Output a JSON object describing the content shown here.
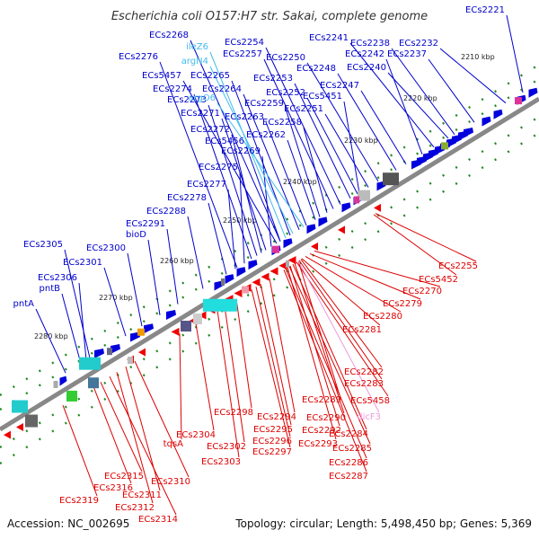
{
  "title": "Escherichia coli O157:H7 str. Sakai, complete genome",
  "accession": "Accession: NC_002695",
  "topology": "Topology: circular; Length: 5,498,450 bp; Genes: 5,369",
  "colors": {
    "forward_label": "#0000cc",
    "reverse_label": "#dd0000",
    "trna_label": "#44bbee",
    "ncrna_label": "#ee99dd",
    "axis": "#888888",
    "tick": "#228822"
  },
  "ticks": [
    "2210 kbp",
    "2220 kbp",
    "2230 kbp",
    "2240 kbp",
    "2250 kbp",
    "2260 kbp",
    "2270 kbp",
    "2280 kbp"
  ],
  "forward_labels": [
    "ECs2221",
    "ECs2232",
    "ECs2237",
    "ECs2238",
    "ECs2240",
    "ECs2241",
    "ECs2242",
    "ECs2247",
    "ECs2248",
    "ECs2250",
    "ECs2251",
    "ECs2252",
    "ECs2253",
    "ECs2254",
    "ECs2257",
    "ECs2258",
    "ECs2259",
    "ECs2262",
    "ECs2263",
    "ECs2264",
    "ECs2265",
    "ECs2268",
    "ECs2269",
    "ECs2271",
    "ECs2272",
    "ECs2273",
    "ECs2274",
    "ECs2275",
    "ECs2276",
    "ECs2277",
    "ECs2278",
    "ECs2288",
    "ECs2291",
    "bioD",
    "ECs2300",
    "ECs2301",
    "ECs2305",
    "ECs2306",
    "pntB",
    "pntA",
    "ECs5451",
    "ECs5456",
    "ECs5457"
  ],
  "trna_labels": [
    "ileZ6",
    "argN4",
    "argO6"
  ],
  "reverse_labels": [
    "ECs2255",
    "ECs5452",
    "ECs2270",
    "ECs2279",
    "ECs2280",
    "ECs2281",
    "ECs2282",
    "ECs2283",
    "ECs2289",
    "ECs5458",
    "ECs2290",
    "ECs2284",
    "ECs2292",
    "ECs2285",
    "ECs2293",
    "ECs2286",
    "ECs2287",
    "ECs2294",
    "ECs2295",
    "ECs2296",
    "ECs2297",
    "ECs2298",
    "ECs2302",
    "ECs2303",
    "ECs2304",
    "tqsA",
    "ECs2310",
    "ECs2311",
    "ECs2312",
    "ECs2314",
    "ECs2315",
    "ECs2316",
    "ECs2319"
  ],
  "ncrna_labels": [
    "dicF3"
  ]
}
